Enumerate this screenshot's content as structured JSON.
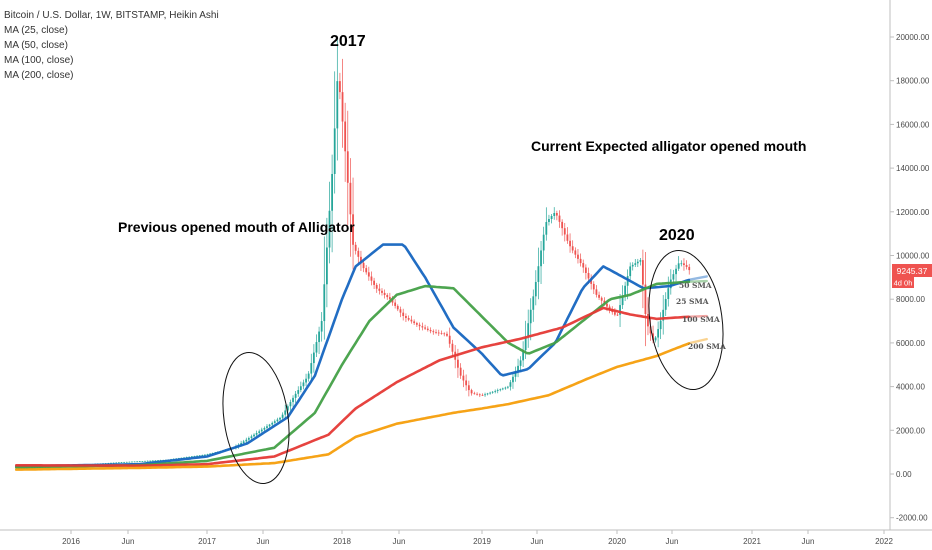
{
  "legend": {
    "title": "Bitcoin / U.S. Dollar, 1W, BITSTAMP, Heikin Ashi",
    "ma_lines": [
      "MA (25, close)",
      "MA (50, close)",
      "MA (100, close)",
      "MA (200, close)"
    ]
  },
  "price_label": {
    "value": "9245.37",
    "timer": "4d 0h",
    "color": "#ef5350"
  },
  "annotations": {
    "year_2017": "2017",
    "year_2020": "2020",
    "previous": "Previous opened mouth of Alligator",
    "current": "Current Expected alligator opened mouth",
    "sma50": "50 SMA",
    "sma25": "25 SMA",
    "sma100": "100 SMA",
    "sma200": "200 SMA"
  },
  "colors": {
    "up": "#26a69a",
    "down": "#ef5350",
    "ma25": "#1565c0",
    "ma50": "#43a047",
    "ma100": "#e53935",
    "ma200": "#f59e0b"
  },
  "chart_data": {
    "type": "line",
    "title": "Bitcoin / U.S. Dollar, 1W, BITSTAMP, Heikin Ashi",
    "x_ticks": [
      "2016",
      "Jun",
      "2017",
      "Jun",
      "2018",
      "Jun",
      "2019",
      "Jun",
      "2020",
      "Jun",
      "2021",
      "Jun",
      "2022"
    ],
    "y_ticks": [
      "20000.00",
      "18000.00",
      "16000.00",
      "14000.00",
      "12000.00",
      "10000.00",
      "8000.00",
      "6000.00",
      "4000.00",
      "2000.00",
      "0.00",
      "-2000.00"
    ],
    "ylim": [
      -2400,
      21800
    ],
    "grid": false,
    "series": [
      {
        "name": "MA (25, close)",
        "points": [
          [
            2015.6,
            350
          ],
          [
            2016.5,
            450
          ],
          [
            2017.0,
            800
          ],
          [
            2017.3,
            1400
          ],
          [
            2017.6,
            2600
          ],
          [
            2017.8,
            4500
          ],
          [
            2018.0,
            8000
          ],
          [
            2018.1,
            9500
          ],
          [
            2018.3,
            10500
          ],
          [
            2018.45,
            10500
          ],
          [
            2018.6,
            9000
          ],
          [
            2018.8,
            6700
          ],
          [
            2019.0,
            5500
          ],
          [
            2019.15,
            4500
          ],
          [
            2019.35,
            4800
          ],
          [
            2019.55,
            6000
          ],
          [
            2019.75,
            8500
          ],
          [
            2019.9,
            9500
          ],
          [
            2020.05,
            9000
          ],
          [
            2020.2,
            8500
          ],
          [
            2020.4,
            8600
          ],
          [
            2020.55,
            8900
          ]
        ]
      },
      {
        "name": "MA (50, close)",
        "points": [
          [
            2015.6,
            300
          ],
          [
            2016.5,
            400
          ],
          [
            2017.0,
            600
          ],
          [
            2017.5,
            1200
          ],
          [
            2017.8,
            2800
          ],
          [
            2018.0,
            5000
          ],
          [
            2018.2,
            7000
          ],
          [
            2018.4,
            8200
          ],
          [
            2018.6,
            8600
          ],
          [
            2018.8,
            8500
          ],
          [
            2019.0,
            7200
          ],
          [
            2019.2,
            6000
          ],
          [
            2019.35,
            5500
          ],
          [
            2019.55,
            6000
          ],
          [
            2019.75,
            7000
          ],
          [
            2019.95,
            8000
          ],
          [
            2020.1,
            8200
          ],
          [
            2020.3,
            8700
          ],
          [
            2020.55,
            8800
          ]
        ]
      },
      {
        "name": "MA (100, close)",
        "points": [
          [
            2015.6,
            400
          ],
          [
            2016.5,
            380
          ],
          [
            2017.0,
            450
          ],
          [
            2017.5,
            800
          ],
          [
            2017.9,
            1800
          ],
          [
            2018.1,
            3000
          ],
          [
            2018.4,
            4200
          ],
          [
            2018.7,
            5200
          ],
          [
            2019.0,
            5800
          ],
          [
            2019.3,
            6200
          ],
          [
            2019.6,
            6700
          ],
          [
            2019.9,
            7600
          ],
          [
            2020.1,
            7300
          ],
          [
            2020.3,
            7100
          ],
          [
            2020.55,
            7200
          ]
        ]
      },
      {
        "name": "MA (200, close)",
        "points": [
          [
            2015.6,
            200
          ],
          [
            2016.5,
            280
          ],
          [
            2017.0,
            340
          ],
          [
            2017.5,
            500
          ],
          [
            2017.9,
            900
          ],
          [
            2018.1,
            1700
          ],
          [
            2018.4,
            2300
          ],
          [
            2018.8,
            2800
          ],
          [
            2019.2,
            3200
          ],
          [
            2019.5,
            3600
          ],
          [
            2019.8,
            4400
          ],
          [
            2020.0,
            4900
          ],
          [
            2020.3,
            5400
          ],
          [
            2020.55,
            6000
          ]
        ]
      },
      {
        "name": "price",
        "points": [
          [
            2015.6,
            250
          ],
          [
            2016.0,
            400
          ],
          [
            2016.4,
            550
          ],
          [
            2016.7,
            650
          ],
          [
            2017.0,
            900
          ],
          [
            2017.2,
            1200
          ],
          [
            2017.4,
            2000
          ],
          [
            2017.55,
            2600
          ],
          [
            2017.65,
            3600
          ],
          [
            2017.75,
            4500
          ],
          [
            2017.85,
            7000
          ],
          [
            2017.93,
            14000
          ],
          [
            2017.97,
            18500
          ],
          [
            2018.02,
            15000
          ],
          [
            2018.08,
            10500
          ],
          [
            2018.15,
            9500
          ],
          [
            2018.25,
            8500
          ],
          [
            2018.35,
            8000
          ],
          [
            2018.45,
            7200
          ],
          [
            2018.55,
            6800
          ],
          [
            2018.65,
            6500
          ],
          [
            2018.75,
            6400
          ],
          [
            2018.85,
            4500
          ],
          [
            2018.92,
            3700
          ],
          [
            2019.0,
            3600
          ],
          [
            2019.1,
            3800
          ],
          [
            2019.2,
            4000
          ],
          [
            2019.3,
            5300
          ],
          [
            2019.4,
            8500
          ],
          [
            2019.48,
            11500
          ],
          [
            2019.55,
            12000
          ],
          [
            2019.65,
            10500
          ],
          [
            2019.75,
            9500
          ],
          [
            2019.85,
            8200
          ],
          [
            2019.95,
            7500
          ],
          [
            2020.0,
            7200
          ],
          [
            2020.1,
            9500
          ],
          [
            2020.18,
            9800
          ],
          [
            2020.22,
            7000
          ],
          [
            2020.28,
            6000
          ],
          [
            2020.33,
            7000
          ],
          [
            2020.4,
            8800
          ],
          [
            2020.47,
            9700
          ],
          [
            2020.52,
            9500
          ],
          [
            2020.56,
            9200
          ]
        ]
      }
    ]
  }
}
